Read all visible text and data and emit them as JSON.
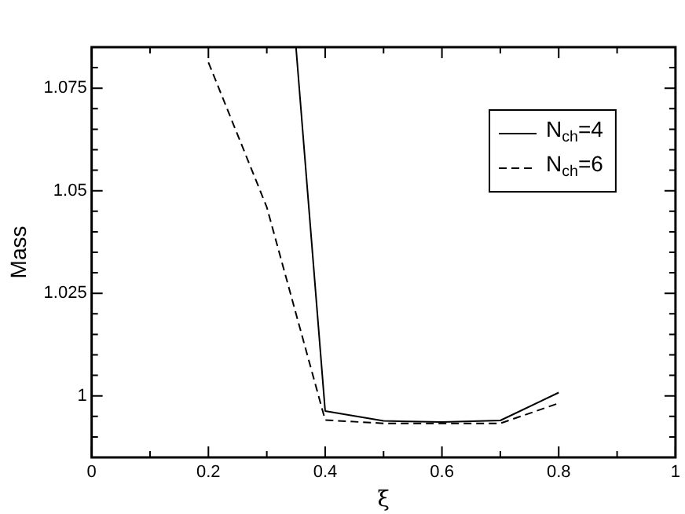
{
  "chart_data": {
    "type": "line",
    "xlabel": "ξ",
    "ylabel": "Mass",
    "series": [
      {
        "name": "N$_{ch}$=4",
        "color": "#000000",
        "line_style": "solid",
        "x": [
          0.35,
          0.4,
          0.5,
          0.6,
          0.7,
          0.8
        ],
        "values": [
          1.085,
          0.9963,
          0.9939,
          0.9936,
          0.994,
          1.0008
        ]
      },
      {
        "name": "N$_{ch}$=6",
        "color": "#000000",
        "line_style": "dashed",
        "x": [
          0.2,
          0.3,
          0.4,
          0.5,
          0.6,
          0.7,
          0.8
        ],
        "values": [
          1.0813,
          1.046,
          0.9941,
          0.9933,
          0.9933,
          0.9933,
          0.9982
        ]
      }
    ],
    "xlim": [
      0,
      1
    ],
    "ylim": [
      0.985,
      1.085
    ],
    "xticks": [
      0,
      {
        "value": 0.1,
        "label": null
      },
      0.2,
      {
        "value": 0.3,
        "label": null
      },
      0.4,
      {
        "value": 0.5,
        "label": null
      },
      0.6,
      {
        "value": 0.7,
        "label": null
      },
      0.8,
      {
        "value": 0.9,
        "label": null
      },
      1
    ],
    "yticks": [
      {
        "value": 0.99,
        "label": null
      },
      {
        "value": 0.995,
        "label": null
      },
      1,
      {
        "value": 1.005,
        "label": null
      },
      {
        "value": 1.01,
        "label": null
      },
      {
        "value": 1.015,
        "label": null
      },
      {
        "value": 1.02,
        "label": null
      },
      1.025,
      {
        "value": 1.03,
        "label": null
      },
      {
        "value": 1.035,
        "label": null
      },
      {
        "value": 1.04,
        "label": null
      },
      {
        "value": 1.045,
        "label": null
      },
      1.05,
      {
        "value": 1.055,
        "label": null
      },
      {
        "value": 1.06,
        "label": null
      },
      {
        "value": 1.065,
        "label": null
      },
      {
        "value": 1.07,
        "label": null
      },
      1.075,
      {
        "value": 1.08,
        "label": null
      }
    ],
    "grid": false,
    "legend": "top right",
    "marker": "none"
  }
}
